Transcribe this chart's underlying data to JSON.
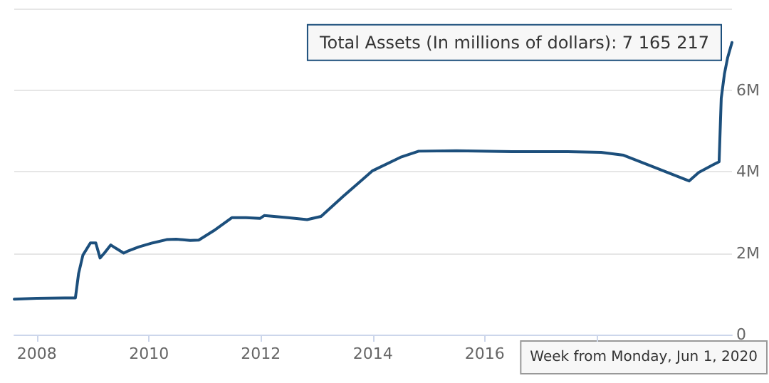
{
  "chart_data": {
    "type": "line",
    "x": [
      "2007-08-06",
      "2007-12-31",
      "2008-06-30",
      "2008-09-08",
      "2008-09-29",
      "2008-10-27",
      "2008-12-15",
      "2009-01-19",
      "2009-02-16",
      "2009-03-16",
      "2009-04-27",
      "2009-05-25",
      "2009-07-20",
      "2009-08-17",
      "2009-10-26",
      "2010-01-25",
      "2010-04-26",
      "2010-06-28",
      "2010-09-27",
      "2010-11-22",
      "2011-02-28",
      "2011-06-27",
      "2011-09-26",
      "2011-12-26",
      "2012-01-23",
      "2012-06-25",
      "2012-10-29",
      "2013-01-28",
      "2013-06-24",
      "2013-12-30",
      "2014-06-30",
      "2014-10-27",
      "2015-06-29",
      "2016-06-27",
      "2017-06-26",
      "2018-01-29",
      "2018-06-25",
      "2019-01-28",
      "2019-08-26",
      "2019-10-28",
      "2020-01-27",
      "2020-03-09",
      "2020-03-23",
      "2020-04-13",
      "2020-05-04",
      "2020-06-01"
    ],
    "series": [
      {
        "color": "#1c4f7c",
        "values": [
          870000,
          890000,
          900000,
          900000,
          1500000,
          1950000,
          2250000,
          2250000,
          1880000,
          2000000,
          2200000,
          2130000,
          2000000,
          2050000,
          2150000,
          2250000,
          2330000,
          2340000,
          2310000,
          2320000,
          2550000,
          2870000,
          2870000,
          2850000,
          2920000,
          2870000,
          2820000,
          2900000,
          3400000,
          4020000,
          4350000,
          4500000,
          4510000,
          4490000,
          4490000,
          4470000,
          4400000,
          4080000,
          3770000,
          3980000,
          4160000,
          4240000,
          5800000,
          6400000,
          6800000,
          7165217
        ]
      }
    ],
    "ylim": [
      0,
      8000000
    ],
    "yticks": [
      {
        "value": 0,
        "label": "0"
      },
      {
        "value": 2000000,
        "label": "2M"
      },
      {
        "value": 4000000,
        "label": "4M"
      },
      {
        "value": 6000000,
        "label": "6M"
      },
      {
        "value": 8000000,
        "label": null
      }
    ],
    "xlim": [
      "2007-08-06",
      "2020-06-01"
    ],
    "xticks": [
      {
        "value": "2008-01-01",
        "label": "2008"
      },
      {
        "value": "2010-01-01",
        "label": "2010"
      },
      {
        "value": "2012-01-01",
        "label": "2012"
      },
      {
        "value": "2014-01-01",
        "label": "2014"
      },
      {
        "value": "2016-01-01",
        "label": "2016"
      },
      {
        "value": "2018-01-01",
        "label": null
      }
    ],
    "grid": "y",
    "marker": "none",
    "line_style": "solid",
    "annotations": [
      {
        "text": "Total Assets (In millions of dollars): 7 165 217",
        "x": "2020-06-01",
        "y": 7165217
      },
      "Week from Monday, Jun 1, 2020"
    ]
  }
}
